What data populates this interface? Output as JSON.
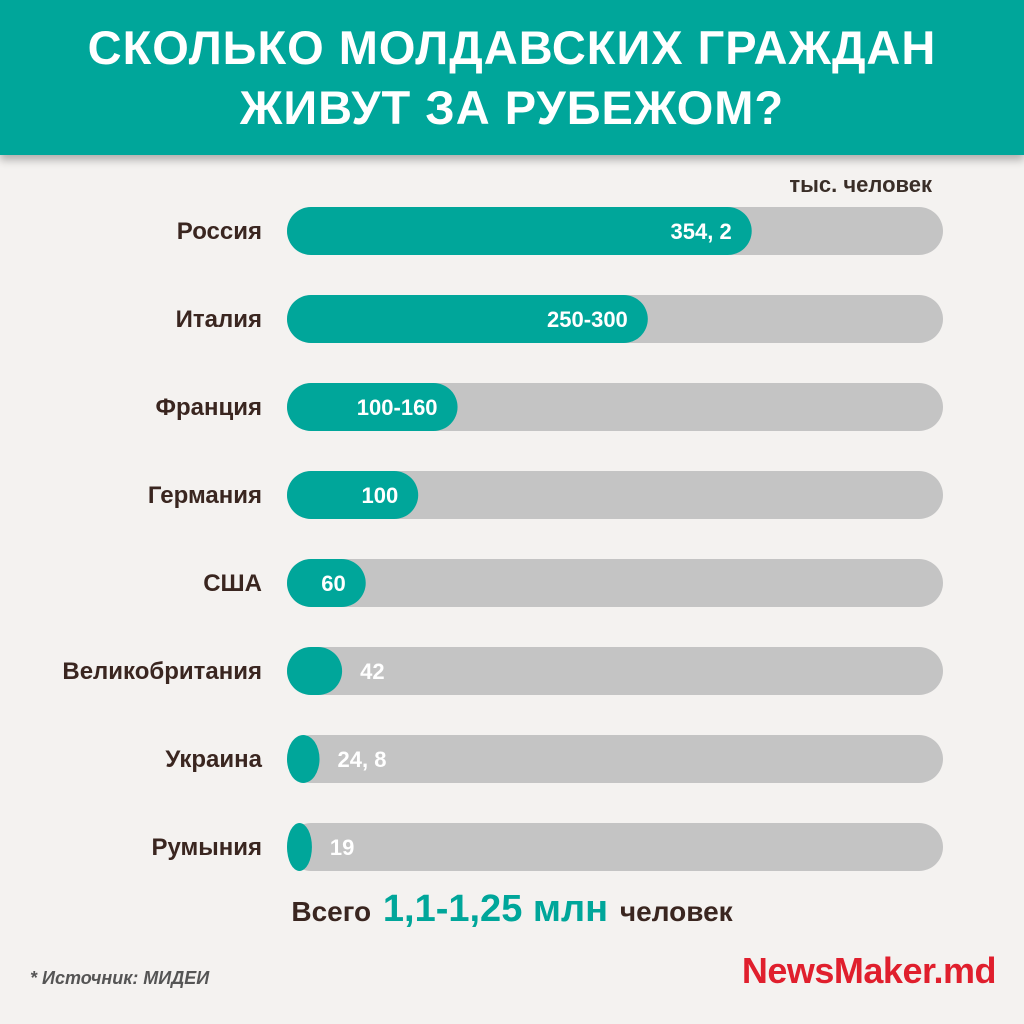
{
  "header": {
    "title_line1": "СКОЛЬКО МОЛДАВСКИХ ГРАЖДАН",
    "title_line2": "ЖИВУТ ЗА РУБЕЖОМ?"
  },
  "unit_label": "тыс. человек",
  "total": {
    "prefix": "Всего",
    "value": "1,1-1,25 млн",
    "suffix": "человек"
  },
  "source": "* Источник: МИДЕИ",
  "logo": "NewsMaker.md",
  "colors": {
    "accent": "#00a69a",
    "track": "#c4c4c4",
    "label": "#3a2620",
    "logo": "#e01f2d"
  },
  "chart_data": {
    "type": "bar",
    "orientation": "horizontal",
    "categories": [
      "Россия",
      "Италия",
      "Франция",
      "Германия",
      "США",
      "Великобритания",
      "Украина",
      "Румыния"
    ],
    "values": [
      354.2,
      275,
      130,
      100,
      60,
      42,
      24.8,
      19
    ],
    "value_labels": [
      "354, 2",
      "250-300",
      "100-160",
      "100",
      "60",
      "42",
      "24, 8",
      "19"
    ],
    "xlim": [
      0,
      500
    ],
    "grid": false,
    "legend": "none"
  }
}
